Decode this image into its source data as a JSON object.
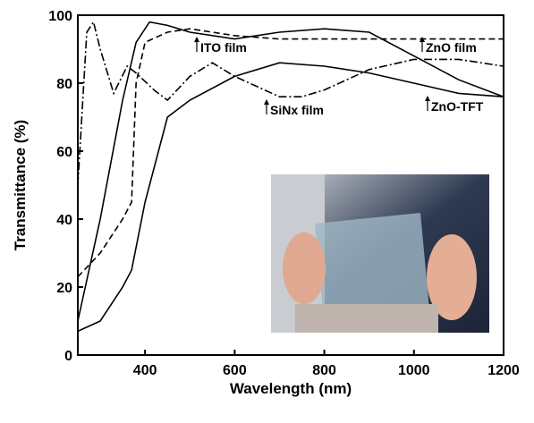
{
  "chart_data": {
    "type": "line",
    "x_label": "Wavelength (nm)",
    "y_label": "Transmittance (%)",
    "xlim": [
      250,
      1200
    ],
    "xticks": [
      400,
      600,
      800,
      1000,
      1200
    ],
    "ylim": [
      0,
      100
    ],
    "yticks": [
      0,
      20,
      40,
      60,
      80,
      100
    ],
    "series": [
      {
        "name": "ITO film",
        "color": "#000000",
        "dash": "solid",
        "x": [
          250,
          300,
          350,
          380,
          410,
          450,
          500,
          600,
          700,
          800,
          900,
          1000,
          1100,
          1200
        ],
        "values": [
          10,
          40,
          75,
          92,
          98,
          97,
          95,
          93,
          95,
          96,
          95,
          88,
          81,
          76
        ]
      },
      {
        "name": "ZnO film",
        "color": "#000000",
        "dash": "dashed",
        "x": [
          250,
          300,
          350,
          370,
          380,
          400,
          450,
          500,
          600,
          700,
          800,
          900,
          1000,
          1100,
          1200
        ],
        "values": [
          23,
          30,
          40,
          45,
          80,
          92,
          95,
          96,
          94,
          93,
          93,
          93,
          93,
          93,
          93
        ]
      },
      {
        "name": "SiNx film",
        "color": "#000000",
        "dash": "dashdot",
        "x": [
          250,
          270,
          285,
          300,
          330,
          360,
          380,
          420,
          450,
          500,
          550,
          600,
          700,
          750,
          800,
          900,
          1000,
          1100,
          1200
        ],
        "values": [
          50,
          95,
          98,
          90,
          77,
          85,
          83,
          78,
          75,
          82,
          86,
          82,
          76,
          76,
          78,
          84,
          87,
          87,
          85
        ]
      },
      {
        "name": "ZnO-TFT",
        "color": "#000000",
        "dash": "solid",
        "x": [
          250,
          300,
          350,
          370,
          400,
          450,
          500,
          600,
          700,
          800,
          900,
          1000,
          1100,
          1200
        ],
        "values": [
          7,
          10,
          20,
          25,
          45,
          70,
          75,
          82,
          86,
          85,
          83,
          80,
          77,
          76
        ]
      }
    ]
  }
}
